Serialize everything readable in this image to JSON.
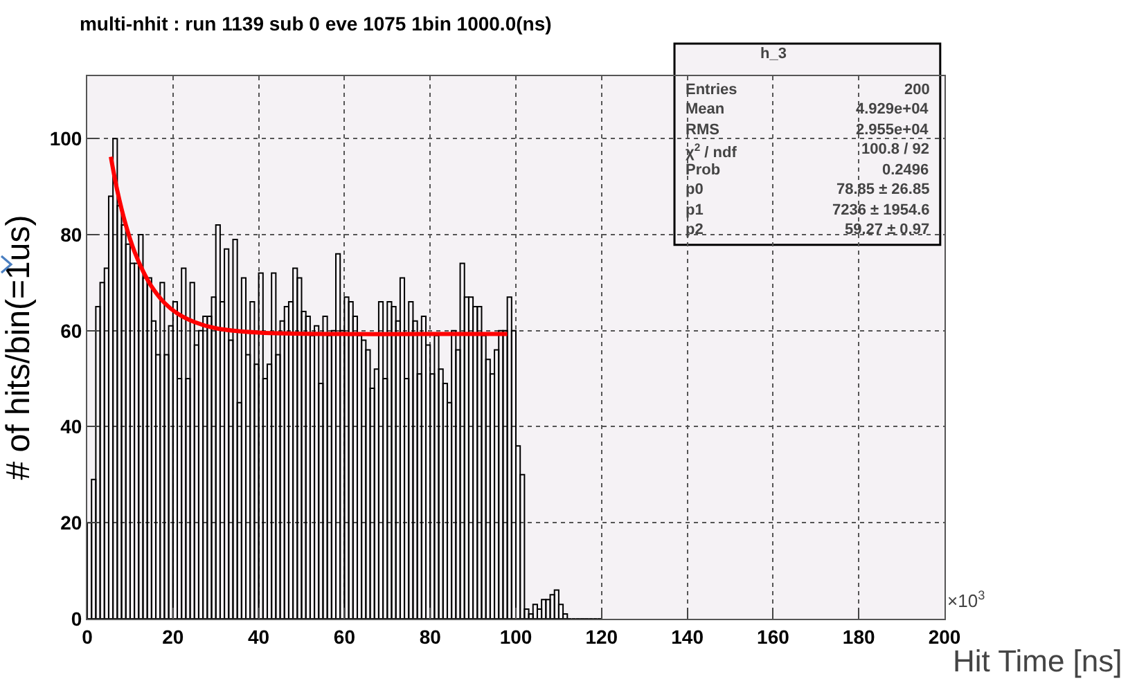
{
  "chart_data": {
    "type": "histogram",
    "title": "multi-nhit : run 1139 sub 0 eve 1075 1bin 1000.0(ns)",
    "xlabel": "Hit Time [ns]",
    "ylabel": "# of hits/bin(=1us)",
    "bins": [
      0,
      1,
      2,
      3,
      4,
      5,
      6,
      7,
      8,
      9,
      10,
      11,
      12,
      13,
      14,
      15,
      16,
      17,
      18,
      19,
      20,
      21,
      22,
      23,
      24,
      25,
      26,
      27,
      28,
      29,
      30,
      31,
      32,
      33,
      34,
      35,
      36,
      37,
      38,
      39,
      40,
      41,
      42,
      43,
      44,
      45,
      46,
      47,
      48,
      49,
      50,
      51,
      52,
      53,
      54,
      55,
      56,
      57,
      58,
      59,
      60,
      61,
      62,
      63,
      64,
      65,
      66,
      67,
      68,
      69,
      70,
      71,
      72,
      73,
      74,
      75,
      76,
      77,
      78,
      79,
      80,
      81,
      82,
      83,
      84,
      85,
      86,
      87,
      88,
      89,
      90,
      91,
      92,
      93,
      94,
      95,
      96,
      97,
      98,
      99,
      100,
      101,
      102,
      103,
      104,
      105,
      106,
      107,
      108,
      109,
      110,
      111,
      112,
      113,
      114,
      115,
      116,
      117,
      118,
      119,
      120
    ],
    "values": [
      20,
      29,
      65,
      70,
      73,
      88,
      100,
      86,
      82,
      78,
      74,
      74,
      80,
      71,
      71,
      62,
      55,
      70,
      55,
      61,
      66,
      50,
      73,
      50,
      70,
      57,
      60,
      63,
      63,
      67,
      82,
      66,
      77,
      58,
      79,
      45,
      71,
      55,
      66,
      53,
      72,
      50,
      53,
      72,
      55,
      62,
      65,
      66,
      73,
      71,
      64,
      63,
      59,
      61,
      49,
      63,
      59,
      60,
      76,
      60,
      67,
      66,
      63,
      59,
      58,
      56,
      48,
      52,
      66,
      50,
      66,
      65,
      62,
      71,
      50,
      66,
      62,
      51,
      63,
      57,
      51,
      59,
      52,
      49,
      45,
      60,
      56,
      74,
      67,
      67,
      65,
      65,
      59,
      54,
      51,
      56,
      60,
      60,
      67,
      60,
      36,
      30,
      2,
      1,
      3,
      2,
      4,
      4,
      5,
      6,
      3,
      1,
      0,
      0,
      0,
      0,
      0,
      0,
      0,
      0
    ],
    "color": "#000000",
    "series": [
      {
        "type": "line",
        "color": "#ff0000",
        "x": [
          5.5,
          7,
          9,
          11,
          13,
          15,
          18,
          21,
          25,
          30,
          40,
          60,
          80,
          98
        ],
        "values": [
          96.2,
          89.2,
          82.0,
          76.5,
          72.4,
          69.2,
          65.8,
          63.6,
          61.8,
          60.5,
          59.6,
          59.3,
          59.3,
          59.3
        ]
      }
    ],
    "xlim": [
      0,
      200
    ],
    "xticks": [
      0,
      20,
      40,
      60,
      80,
      100,
      120,
      140,
      160,
      180,
      200
    ],
    "ylim": [
      0,
      113
    ],
    "yticks": [
      0,
      20,
      40,
      60,
      80,
      100
    ],
    "grid": true,
    "annotations": [
      "h_3",
      "Entries",
      "200",
      "Mean",
      "4.929e+04",
      "RMS",
      "2.955e+04",
      "χ$^{2}$ / ndf",
      "100.8 / 92",
      "Prob",
      "0.2496",
      "p0",
      "78.85 ± 26.85",
      "p1",
      "7236 ± 1954.6",
      "p2",
      "59.27 ± 0.97",
      "×10$^{3}$"
    ]
  }
}
